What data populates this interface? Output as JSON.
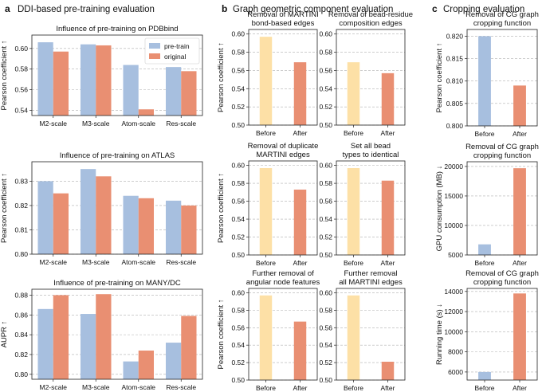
{
  "sections": [
    {
      "id": "a",
      "letter": "a",
      "title": "DDI-based pre-training evaluation"
    },
    {
      "id": "b",
      "letter": "b",
      "title": "Graph geometric component evaluation"
    },
    {
      "id": "c",
      "letter": "c",
      "title": "Cropping evaluation"
    }
  ],
  "colors": {
    "pretrain": "#a7bfdf",
    "original": "#e98f72",
    "before": "#fde0a6",
    "after": "#e98f72",
    "c_before": "#a7bfdf",
    "c_after": "#e98f72"
  },
  "legend": {
    "pretrain": "pre-train",
    "original": "original"
  },
  "chart_data": [
    {
      "id": "a1",
      "section": "a",
      "type": "bar",
      "title": "Influence of pre-training on PDBbind",
      "categories": [
        "M2-scale",
        "M3-scale",
        "Atom-scale",
        "Res-scale"
      ],
      "series": [
        {
          "name": "pre-train",
          "values": [
            0.606,
            0.604,
            0.584,
            0.582
          ]
        },
        {
          "name": "original",
          "values": [
            0.597,
            0.603,
            0.541,
            0.578
          ]
        }
      ],
      "ylabel": "Pearson coefficient ↑",
      "ylim": [
        0.535,
        0.613
      ],
      "yticks": [
        0.54,
        0.56,
        0.58,
        0.6
      ],
      "legend": "top-right"
    },
    {
      "id": "a2",
      "section": "a",
      "type": "bar",
      "title": "Influence of pre-training on ATLAS",
      "categories": [
        "M2-scale",
        "M3-scale",
        "Atom-scale",
        "Res-scale"
      ],
      "series": [
        {
          "name": "pre-train",
          "values": [
            0.83,
            0.835,
            0.824,
            0.822
          ]
        },
        {
          "name": "original",
          "values": [
            0.825,
            0.832,
            0.823,
            0.82
          ]
        }
      ],
      "ylabel": "Pearson coefficient ↑",
      "ylim": [
        0.8,
        0.838
      ],
      "yticks": [
        0.8,
        0.81,
        0.82,
        0.83
      ]
    },
    {
      "id": "a3",
      "section": "a",
      "type": "bar",
      "title": "Influence of pre-training on MANY/DC",
      "categories": [
        "M2-scale",
        "M3-scale",
        "Atom-scale",
        "Res-scale"
      ],
      "series": [
        {
          "name": "pre-train",
          "values": [
            0.866,
            0.861,
            0.813,
            0.832
          ]
        },
        {
          "name": "original",
          "values": [
            0.88,
            0.881,
            0.824,
            0.859
          ]
        }
      ],
      "ylabel": "AUPR ↑",
      "ylim": [
        0.795,
        0.886
      ],
      "yticks": [
        0.8,
        0.82,
        0.84,
        0.86,
        0.88
      ]
    },
    {
      "id": "b1",
      "section": "b",
      "type": "bar",
      "title": "Removal of MARTINI bond-based edges",
      "categories": [
        "Before",
        "After"
      ],
      "values": [
        0.597,
        0.569
      ],
      "ylabel": "Pearson coefficient ↑",
      "ylim": [
        0.5,
        0.605
      ],
      "yticks": [
        0.5,
        0.52,
        0.54,
        0.56,
        0.58,
        0.6
      ]
    },
    {
      "id": "b2",
      "section": "b",
      "type": "bar",
      "title": "Removal of bead-residue composition edges",
      "categories": [
        "Before",
        "After"
      ],
      "values": [
        0.569,
        0.557
      ],
      "ylabel": "",
      "ylim": [
        0.5,
        0.605
      ],
      "yticks": [
        0.5,
        0.52,
        0.54,
        0.56,
        0.58,
        0.6
      ]
    },
    {
      "id": "b3",
      "section": "b",
      "type": "bar",
      "title": "Removal of duplicate MARTINI edges",
      "categories": [
        "Before",
        "After"
      ],
      "values": [
        0.597,
        0.573
      ],
      "ylabel": "Pearson coefficient ↑",
      "ylim": [
        0.5,
        0.605
      ],
      "yticks": [
        0.5,
        0.52,
        0.54,
        0.56,
        0.58,
        0.6
      ]
    },
    {
      "id": "b4",
      "section": "b",
      "type": "bar",
      "title": "Set all bead types to identical",
      "categories": [
        "Before",
        "After"
      ],
      "values": [
        0.597,
        0.583
      ],
      "ylabel": "",
      "ylim": [
        0.5,
        0.605
      ],
      "yticks": [
        0.5,
        0.52,
        0.54,
        0.56,
        0.58,
        0.6
      ]
    },
    {
      "id": "b5",
      "section": "b",
      "type": "bar",
      "title": "Further removal of angular node features",
      "categories": [
        "Before",
        "After"
      ],
      "values": [
        0.597,
        0.567
      ],
      "ylabel": "Pearson coefficient ↑",
      "ylim": [
        0.5,
        0.605
      ],
      "yticks": [
        0.5,
        0.52,
        0.54,
        0.56,
        0.58,
        0.6
      ]
    },
    {
      "id": "b6",
      "section": "b",
      "type": "bar",
      "title": "Further removal all MARTINI edges",
      "categories": [
        "Before",
        "After"
      ],
      "values": [
        0.597,
        0.521
      ],
      "ylabel": "",
      "ylim": [
        0.5,
        0.605
      ],
      "yticks": [
        0.5,
        0.52,
        0.54,
        0.56,
        0.58,
        0.6
      ]
    },
    {
      "id": "c1",
      "section": "c",
      "type": "bar",
      "title": "Removal of CG graph cropping function",
      "categories": [
        "Before",
        "After"
      ],
      "values": [
        0.82,
        0.809
      ],
      "ylabel": "Pearson coefficient ↑",
      "ylim": [
        0.8,
        0.8215
      ],
      "yticks": [
        0.8,
        0.805,
        0.81,
        0.815,
        0.82
      ]
    },
    {
      "id": "c2",
      "section": "c",
      "type": "bar",
      "title": "Removal of CG graph cropping function",
      "categories": [
        "Before",
        "After"
      ],
      "values": [
        6800,
        19700
      ],
      "ylabel": "GPU consumption (MB) ↓",
      "ylim": [
        5000,
        20800
      ],
      "yticks": [
        5000,
        10000,
        15000,
        20000
      ]
    },
    {
      "id": "c3",
      "section": "c",
      "type": "bar",
      "title": "Removal of CG graph cropping function",
      "categories": [
        "Before",
        "After"
      ],
      "values": [
        6000,
        13800
      ],
      "ylabel": "Running time (s) ↓",
      "ylim": [
        5200,
        14300
      ],
      "yticks": [
        6000,
        8000,
        10000,
        12000,
        14000
      ]
    }
  ]
}
